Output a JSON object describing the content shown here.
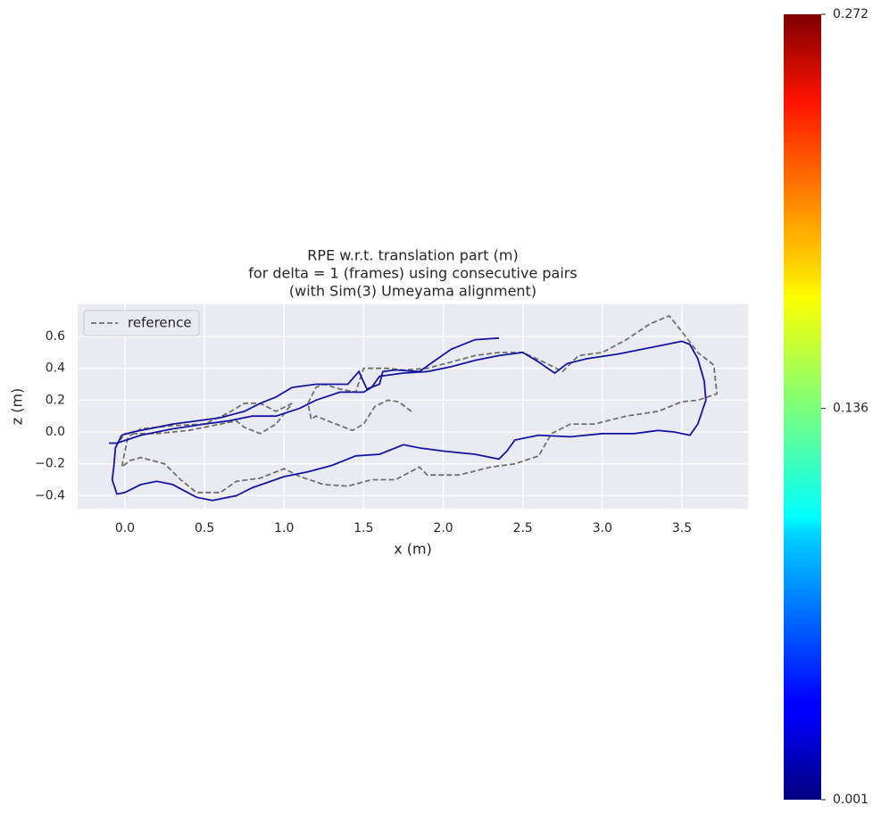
{
  "chart_data": {
    "type": "line",
    "title": [
      "RPE w.r.t. translation part (m)",
      "for delta = 1 (frames) using consecutive pairs",
      "(with Sim(3) Umeyama alignment)"
    ],
    "xlabel": "x (m)",
    "ylabel": "z (m)",
    "xlim": [
      -0.297,
      3.915
    ],
    "ylim": [
      -0.482,
      0.802
    ],
    "xticks": [
      {
        "value": 0,
        "label": "0.0"
      },
      0.5,
      {
        "value": 1,
        "label": "1.0"
      },
      1.5,
      {
        "value": 2,
        "label": "2.0"
      },
      2.5,
      {
        "value": 3,
        "label": "3.0"
      },
      3.5
    ],
    "yticks": [
      {
        "value": -0.4,
        "label": "−0.4"
      },
      {
        "value": -0.2,
        "label": "−0.2"
      },
      {
        "value": 0,
        "label": "0.0"
      },
      0.2,
      0.4,
      0.6
    ],
    "grid": true,
    "legend": "upper left",
    "series": [
      {
        "name": "reference",
        "color": "#707070",
        "linestyle": "dashed",
        "x": [
          1.8,
          1.72,
          1.65,
          1.57,
          1.5,
          1.43,
          1.3,
          1.2,
          1.17,
          1.15,
          1.2,
          1.25,
          1.35,
          1.45,
          1.5,
          1.65,
          1.75,
          1.9,
          2.05,
          2.2,
          2.35,
          2.5,
          2.65,
          2.75,
          2.85,
          3.0,
          3.15,
          3.3,
          3.42,
          3.5,
          3.6,
          3.7,
          3.72,
          3.6,
          3.5,
          3.35,
          3.15,
          2.95,
          2.8,
          2.68,
          2.6,
          2.45,
          2.3,
          2.1,
          1.9,
          1.85,
          1.7,
          1.55,
          1.4,
          1.25,
          1.1,
          1.0,
          0.85,
          0.7,
          0.6,
          0.45,
          0.35,
          0.25,
          0.1,
          0.03,
          -0.02,
          0.0,
          0.02,
          0.1,
          0.3,
          0.5,
          0.65,
          0.75,
          0.85,
          0.95,
          1.05,
          0.95,
          0.85,
          0.75,
          0.7,
          0.55,
          0.4,
          0.2,
          0.0,
          -0.03
        ],
        "values": [
          0.13,
          0.19,
          0.2,
          0.16,
          0.05,
          0.01,
          0.06,
          0.1,
          0.08,
          0.18,
          0.28,
          0.3,
          0.27,
          0.25,
          0.4,
          0.4,
          0.39,
          0.4,
          0.44,
          0.48,
          0.5,
          0.5,
          0.43,
          0.38,
          0.48,
          0.5,
          0.58,
          0.68,
          0.73,
          0.63,
          0.5,
          0.42,
          0.24,
          0.2,
          0.19,
          0.13,
          0.1,
          0.05,
          0.05,
          -0.01,
          -0.15,
          -0.2,
          -0.22,
          -0.27,
          -0.27,
          -0.22,
          -0.3,
          -0.3,
          -0.34,
          -0.33,
          -0.28,
          -0.23,
          -0.29,
          -0.31,
          -0.38,
          -0.38,
          -0.3,
          -0.2,
          -0.16,
          -0.18,
          -0.22,
          -0.12,
          -0.03,
          0.02,
          0.04,
          0.05,
          0.12,
          0.18,
          0.18,
          0.13,
          0.18,
          0.05,
          -0.01,
          0.03,
          0.07,
          0.04,
          0.01,
          -0.01,
          -0.01,
          -0.05
        ]
      },
      {
        "color": "#1515a0",
        "linestyle": "solid",
        "x": [
          2.35,
          2.2,
          2.05,
          1.95,
          1.85,
          1.7,
          1.62,
          1.6,
          1.52,
          1.47,
          1.4,
          1.3,
          1.2,
          1.05,
          0.95,
          0.85,
          0.75,
          0.6,
          0.45,
          0.3,
          0.2,
          0.05,
          -0.02,
          -0.06,
          -0.07,
          -0.08,
          -0.05,
          0.0,
          0.1,
          0.2,
          0.3,
          0.45,
          0.55,
          0.7,
          0.8,
          1.0,
          1.15,
          1.3,
          1.45,
          1.6,
          1.75,
          1.85,
          2.0,
          2.2,
          2.35,
          2.4,
          2.45,
          2.6,
          2.8,
          3.0,
          3.2,
          3.35,
          3.45,
          3.55,
          3.6,
          3.65,
          3.64,
          3.6,
          3.55,
          3.5,
          3.35,
          3.1,
          2.9,
          2.78,
          2.7,
          2.6,
          2.5,
          2.35,
          2.2,
          2.05,
          1.9,
          1.75,
          1.6,
          1.55,
          1.5,
          1.35,
          1.2,
          1.1,
          0.95,
          0.8,
          0.65,
          0.5,
          0.3,
          0.1,
          -0.05,
          -0.1
        ],
        "values": [
          0.59,
          0.58,
          0.52,
          0.45,
          0.38,
          0.39,
          0.38,
          0.3,
          0.27,
          0.38,
          0.3,
          0.3,
          0.3,
          0.28,
          0.22,
          0.18,
          0.13,
          0.09,
          0.07,
          0.05,
          0.03,
          0.0,
          -0.02,
          -0.1,
          -0.22,
          -0.3,
          -0.39,
          -0.38,
          -0.33,
          -0.31,
          -0.33,
          -0.41,
          -0.43,
          -0.4,
          -0.35,
          -0.28,
          -0.25,
          -0.21,
          -0.15,
          -0.14,
          -0.08,
          -0.1,
          -0.12,
          -0.14,
          -0.17,
          -0.12,
          -0.05,
          -0.02,
          -0.03,
          -0.01,
          -0.01,
          0.01,
          0.0,
          -0.02,
          0.05,
          0.2,
          0.32,
          0.46,
          0.55,
          0.57,
          0.54,
          0.49,
          0.46,
          0.43,
          0.37,
          0.44,
          0.5,
          0.48,
          0.45,
          0.41,
          0.38,
          0.37,
          0.35,
          0.28,
          0.25,
          0.25,
          0.2,
          0.15,
          0.1,
          0.1,
          0.07,
          0.05,
          0.02,
          -0.02,
          -0.07,
          -0.07
        ]
      }
    ],
    "colorbar": {
      "clim": [
        0.001,
        0.272
      ],
      "ticks": [
        0.001,
        0.136,
        0.272
      ],
      "colormap": "jet"
    }
  }
}
